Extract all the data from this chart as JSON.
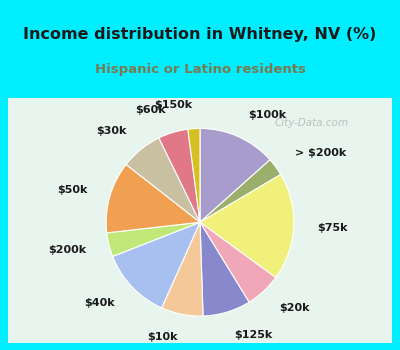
{
  "title": "Income distribution in Whitney, NV (%)",
  "subtitle": "Hispanic or Latino residents",
  "title_color": "#1a1a1a",
  "subtitle_color": "#7a7a50",
  "background_outer": "#00eeff",
  "background_inner": "#e8f5ee",
  "labels": [
    "$100k",
    "> $200k",
    "$75k",
    "$20k",
    "$125k",
    "$10k",
    "$40k",
    "$200k",
    "$50k",
    "$30k",
    "$60k",
    "$150k"
  ],
  "sizes": [
    13,
    3,
    18,
    6,
    8,
    7,
    12,
    4,
    12,
    7,
    5,
    2
  ],
  "colors": [
    "#a89ccc",
    "#9aaf6b",
    "#f0f07a",
    "#f0a8b8",
    "#8888cc",
    "#f5c89a",
    "#a8c0f0",
    "#c0e878",
    "#f0a050",
    "#c8c0a0",
    "#e07888",
    "#d4c020"
  ],
  "startangle": 90,
  "label_fontsize": 8.0,
  "watermark": "City-Data.com"
}
